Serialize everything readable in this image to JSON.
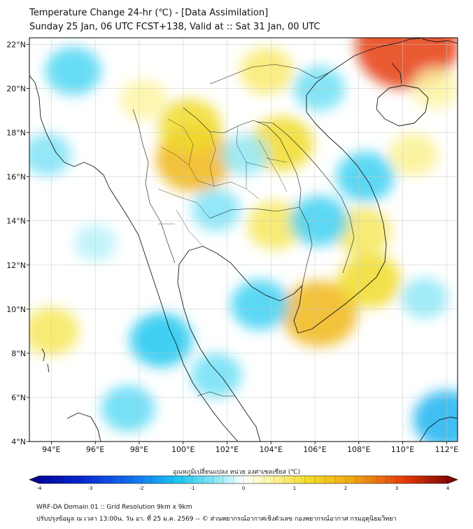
{
  "title": {
    "line1": "Temperature Change 24-hr (℃) - [Data Assimilation]",
    "line2": "Sunday 25 Jan, 06 UTC FCST+138, Valid at :: Sat 31 Jan, 00 UTC"
  },
  "map": {
    "lon_range": [
      93,
      112.5
    ],
    "lat_range": [
      4,
      22.3
    ],
    "lon_ticks": [
      {
        "value": 94,
        "label": "94°E"
      },
      {
        "value": 96,
        "label": "96°E"
      },
      {
        "value": 98,
        "label": "98°E"
      },
      {
        "value": 100,
        "label": "100°E"
      },
      {
        "value": 102,
        "label": "102°E"
      },
      {
        "value": 104,
        "label": "104°E"
      },
      {
        "value": 106,
        "label": "106°E"
      },
      {
        "value": 108,
        "label": "108°E"
      },
      {
        "value": 110,
        "label": "110°E"
      },
      {
        "value": 112,
        "label": "112°E"
      }
    ],
    "lat_ticks": [
      {
        "value": 22,
        "label": "22°N"
      },
      {
        "value": 20,
        "label": "20°N"
      },
      {
        "value": 18,
        "label": "18°N"
      },
      {
        "value": 16,
        "label": "16°N"
      },
      {
        "value": 14,
        "label": "14°N"
      },
      {
        "value": 12,
        "label": "12°N"
      },
      {
        "value": 10,
        "label": "10°N"
      },
      {
        "value": 8,
        "label": "8°N"
      },
      {
        "value": 6,
        "label": "6°N"
      },
      {
        "value": 4,
        "label": "4°N"
      }
    ],
    "grid": true,
    "anomalies": [
      {
        "lon": 100.5,
        "lat": 16.8,
        "value": 1.8
      },
      {
        "lon": 100.3,
        "lat": 18.3,
        "value": 1.2
      },
      {
        "lon": 104.5,
        "lat": 17.5,
        "value": 1.2
      },
      {
        "lon": 103.8,
        "lat": 20.8,
        "value": 0.8
      },
      {
        "lon": 110.2,
        "lat": 22.0,
        "value": 3.0
      },
      {
        "lon": 106.2,
        "lat": 9.8,
        "value": 1.8
      },
      {
        "lon": 108.5,
        "lat": 11.3,
        "value": 1.2
      },
      {
        "lon": 108.2,
        "lat": 13.5,
        "value": 0.9
      },
      {
        "lon": 104.2,
        "lat": 13.8,
        "value": 0.9
      },
      {
        "lon": 94.0,
        "lat": 9.0,
        "value": 0.9
      },
      {
        "lon": 110.5,
        "lat": 17.0,
        "value": 0.6
      },
      {
        "lon": 98.2,
        "lat": 19.5,
        "value": 0.5
      },
      {
        "lon": 95.0,
        "lat": 20.8,
        "value": -0.9
      },
      {
        "lon": 93.8,
        "lat": 17.0,
        "value": -0.6
      },
      {
        "lon": 106.2,
        "lat": 20.0,
        "value": -0.7
      },
      {
        "lon": 108.3,
        "lat": 16.0,
        "value": -1.0
      },
      {
        "lon": 106.2,
        "lat": 14.0,
        "value": -1.0
      },
      {
        "lon": 103.5,
        "lat": 10.2,
        "value": -1.0
      },
      {
        "lon": 99.0,
        "lat": 8.6,
        "value": -1.2
      },
      {
        "lon": 97.5,
        "lat": 5.5,
        "value": -0.8
      },
      {
        "lon": 101.5,
        "lat": 7.0,
        "value": -0.7
      },
      {
        "lon": 112.0,
        "lat": 5.0,
        "value": -1.4
      },
      {
        "lon": 111.0,
        "lat": 10.5,
        "value": -0.5
      },
      {
        "lon": 101.5,
        "lat": 14.5,
        "value": -0.6
      },
      {
        "lon": 102.8,
        "lat": 17.0,
        "value": -0.5
      },
      {
        "lon": 96.0,
        "lat": 13.0,
        "value": -0.3
      },
      {
        "lon": 111.5,
        "lat": 20.0,
        "value": 0.5
      }
    ]
  },
  "colorbar": {
    "label": "อุณหภูมิเปลี่ยนแปลง หน่วย องศาเซลเซียส (℃)",
    "min": -4,
    "max": 4,
    "ticks": [
      {
        "value": -4,
        "label": "-4"
      },
      {
        "value": -3,
        "label": "-3"
      },
      {
        "value": -2,
        "label": "-2"
      },
      {
        "value": -1,
        "label": "-1"
      },
      {
        "value": 0,
        "label": "0"
      },
      {
        "value": 1,
        "label": "1"
      },
      {
        "value": 2,
        "label": "2"
      },
      {
        "value": 3,
        "label": "3"
      },
      {
        "value": 4,
        "label": "4"
      }
    ],
    "stops": [
      {
        "value": -4,
        "color": "#00008c"
      },
      {
        "value": -3,
        "color": "#0a28d2"
      },
      {
        "value": -2,
        "color": "#1478f0"
      },
      {
        "value": -1.2,
        "color": "#1ec8f0"
      },
      {
        "value": -0.4,
        "color": "#a0ecf8"
      },
      {
        "value": 0,
        "color": "#ffffff"
      },
      {
        "value": 0.4,
        "color": "#fff8b4"
      },
      {
        "value": 1.2,
        "color": "#f0dc28"
      },
      {
        "value": 2,
        "color": "#f0aa14"
      },
      {
        "value": 3,
        "color": "#e63c0a"
      },
      {
        "value": 4,
        "color": "#6e0000"
      }
    ]
  },
  "footer": {
    "line1": "WRF-DA Domain 01 :: Grid Resolution 9km x 9km",
    "line2": "ปรับปรุงข้อมูล ณ เวลา 13:00น. วัน อา. ที่ 25 ม.ค. 2569 -- © ส่วนพยากรณ์อากาศเชิงตัวเลข กองพยากรณ์อากาศ กรมอุตุนิยมวิทยา"
  }
}
